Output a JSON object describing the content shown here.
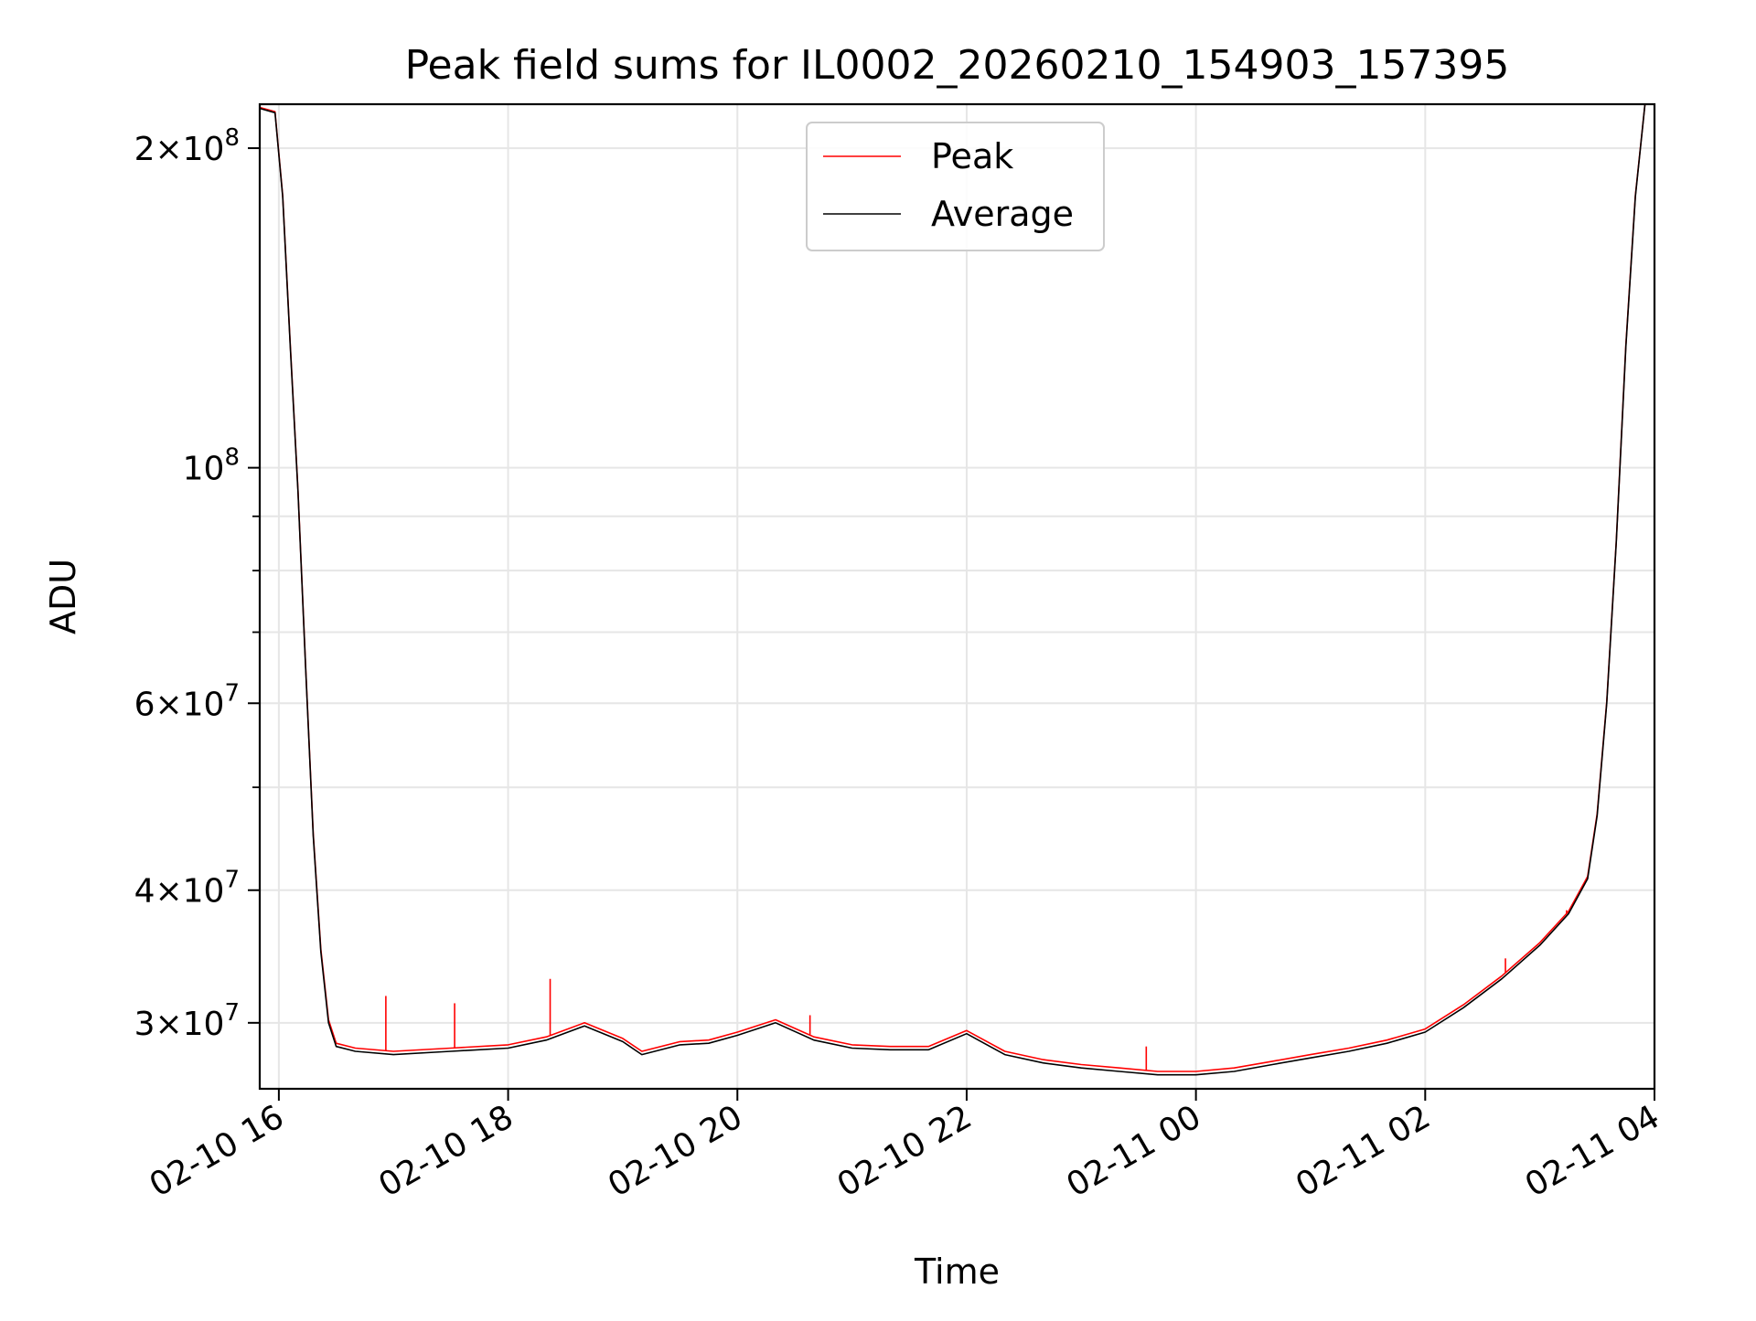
{
  "chart_data": {
    "type": "line",
    "title": "Peak field sums for IL0002_20260210_154903_157395",
    "xlabel": "Time",
    "ylabel": "ADU",
    "yscale": "log",
    "grid": true,
    "legend_position": "top-center",
    "xlim": [
      "02-10 15:50",
      "02-11 04:00"
    ],
    "ylim": [
      26000000,
      220000000
    ],
    "x_ticks": [
      "02-10 16",
      "02-10 18",
      "02-10 20",
      "02-10 22",
      "02-11 00",
      "02-11 02",
      "02-11 04"
    ],
    "y_ticks_major": [
      {
        "value": 30000000,
        "mant": "3",
        "exp": "7"
      },
      {
        "value": 40000000,
        "mant": "4",
        "exp": "7"
      },
      {
        "value": 60000000,
        "mant": "6",
        "exp": "7"
      },
      {
        "value": 100000000,
        "mant": "",
        "exp": "8"
      },
      {
        "value": 200000000,
        "mant": "2",
        "exp": "8"
      }
    ],
    "y_ticks_minor": [
      50000000,
      70000000,
      80000000,
      90000000
    ],
    "series": [
      {
        "name": "Average",
        "color": "#000000",
        "x": [
          "02-10 15:50",
          "02-10 15:58",
          "02-10 16:02",
          "02-10 16:06",
          "02-10 16:10",
          "02-10 16:14",
          "02-10 16:18",
          "02-10 16:22",
          "02-10 16:26",
          "02-10 16:30",
          "02-10 16:40",
          "02-10 17:00",
          "02-10 17:30",
          "02-10 18:00",
          "02-10 18:20",
          "02-10 18:40",
          "02-10 19:00",
          "02-10 19:10",
          "02-10 19:30",
          "02-10 19:45",
          "02-10 20:00",
          "02-10 20:20",
          "02-10 20:40",
          "02-10 21:00",
          "02-10 21:20",
          "02-10 21:40",
          "02-10 22:00",
          "02-10 22:20",
          "02-10 22:40",
          "02-10 23:00",
          "02-10 23:20",
          "02-10 23:40",
          "02-11 00:00",
          "02-11 00:20",
          "02-11 00:40",
          "02-11 01:00",
          "02-11 01:20",
          "02-11 01:40",
          "02-11 02:00",
          "02-11 02:20",
          "02-11 02:40",
          "02-11 03:00",
          "02-11 03:15",
          "02-11 03:25",
          "02-11 03:30",
          "02-11 03:35",
          "02-11 03:40",
          "02-11 03:45",
          "02-11 03:50",
          "02-11 03:55"
        ],
        "y": [
          218000000,
          216000000,
          180000000,
          130000000,
          95000000,
          65000000,
          45000000,
          35000000,
          30000000,
          28500000,
          28200000,
          28000000,
          28200000,
          28400000,
          28900000,
          29800000,
          28800000,
          28000000,
          28600000,
          28700000,
          29200000,
          30000000,
          28900000,
          28400000,
          28300000,
          28300000,
          29300000,
          28000000,
          27500000,
          27200000,
          27000000,
          26800000,
          26800000,
          27000000,
          27400000,
          27800000,
          28200000,
          28700000,
          29400000,
          31000000,
          33000000,
          35500000,
          38000000,
          41000000,
          47000000,
          60000000,
          85000000,
          130000000,
          180000000,
          220000000
        ]
      },
      {
        "name": "Peak",
        "color": "#ff0000",
        "x": [
          "02-10 15:50",
          "02-10 15:58",
          "02-10 16:02",
          "02-10 16:06",
          "02-10 16:10",
          "02-10 16:14",
          "02-10 16:18",
          "02-10 16:22",
          "02-10 16:26",
          "02-10 16:30",
          "02-10 16:40",
          "02-10 17:00",
          "02-10 17:30",
          "02-10 18:00",
          "02-10 18:20",
          "02-10 18:40",
          "02-10 19:00",
          "02-10 19:10",
          "02-10 19:30",
          "02-10 19:45",
          "02-10 20:00",
          "02-10 20:20",
          "02-10 20:40",
          "02-10 21:00",
          "02-10 21:20",
          "02-10 21:40",
          "02-10 22:00",
          "02-10 22:20",
          "02-10 22:40",
          "02-10 23:00",
          "02-10 23:20",
          "02-10 23:40",
          "02-11 00:00",
          "02-11 00:20",
          "02-11 00:40",
          "02-11 01:00",
          "02-11 01:20",
          "02-11 01:40",
          "02-11 02:00",
          "02-11 02:20",
          "02-11 02:40",
          "02-11 03:00",
          "02-11 03:15",
          "02-11 03:25",
          "02-11 03:30",
          "02-11 03:35",
          "02-11 03:40",
          "02-11 03:45",
          "02-11 03:50",
          "02-11 03:55"
        ],
        "y": [
          218500000,
          216500000,
          180500000,
          130500000,
          95300000,
          65200000,
          45200000,
          35200000,
          30200000,
          28700000,
          28400000,
          28200000,
          28400000,
          28600000,
          29100000,
          30000000,
          29000000,
          28200000,
          28800000,
          28900000,
          29400000,
          30200000,
          29100000,
          28600000,
          28500000,
          28500000,
          29500000,
          28200000,
          27700000,
          27400000,
          27200000,
          27000000,
          27000000,
          27200000,
          27600000,
          28000000,
          28400000,
          28900000,
          29600000,
          31200000,
          33200000,
          35700000,
          38200000,
          41200000,
          47200000,
          60200000,
          85200000,
          130500000,
          180500000,
          220500000
        ],
        "spikes": [
          {
            "x": "02-10 16:56",
            "y": 31800000
          },
          {
            "x": "02-10 17:32",
            "y": 31300000
          },
          {
            "x": "02-10 18:22",
            "y": 33000000
          },
          {
            "x": "02-10 20:38",
            "y": 30500000
          },
          {
            "x": "02-10 23:34",
            "y": 28500000
          },
          {
            "x": "02-11 02:42",
            "y": 34500000
          },
          {
            "x": "02-11 03:14",
            "y": 38300000
          }
        ]
      }
    ]
  }
}
